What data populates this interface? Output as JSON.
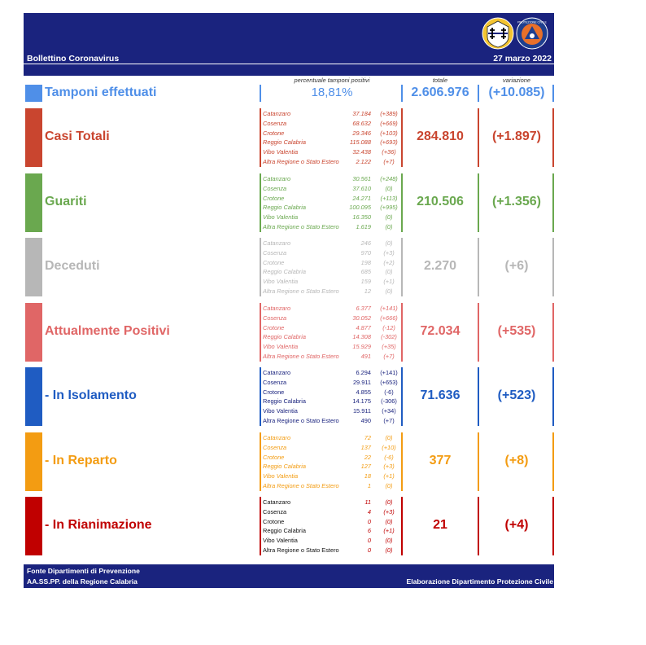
{
  "header": {
    "title": "Bollettino Coronavirus",
    "date": "27 marzo 2022",
    "logo2_text": "PROTEZIONE CIVILE"
  },
  "columns": {
    "percent_label": "percentuale tamponi positivi",
    "total_label": "totale",
    "change_label": "variazione"
  },
  "tamponi": {
    "label": "Tamponi effettuati",
    "percent": "18,81%",
    "total": "2.606.976",
    "change": "(+10.085)",
    "color": "#4f8fe8"
  },
  "sections": [
    {
      "label": "Casi Totali",
      "color": "#c9452f",
      "total": "284.810",
      "change": "(+1.897)",
      "rows": [
        {
          "name": "Catanzaro",
          "value": "37.184",
          "delta": "(+389)"
        },
        {
          "name": "Cosenza",
          "value": "68.632",
          "delta": "(+669)"
        },
        {
          "name": "Crotone",
          "value": "29.346",
          "delta": "(+103)"
        },
        {
          "name": "Reggio Calabria",
          "value": "115.088",
          "delta": "(+693)"
        },
        {
          "name": "Vibo Valentia",
          "value": "32.438",
          "delta": "(+36)"
        },
        {
          "name": "Altra Regione o Stato Estero",
          "value": "2.122",
          "delta": "(+7)"
        }
      ]
    },
    {
      "label": "Guariti",
      "color": "#6aa84f",
      "total": "210.506",
      "change": "(+1.356)",
      "rows": [
        {
          "name": "Catanzaro",
          "value": "30.561",
          "delta": "(+248)"
        },
        {
          "name": "Cosenza",
          "value": "37.610",
          "delta": "(0)"
        },
        {
          "name": "Crotone",
          "value": "24.271",
          "delta": "(+113)"
        },
        {
          "name": "Reggio Calabria",
          "value": "100.095",
          "delta": "(+995)"
        },
        {
          "name": "Vibo Valentia",
          "value": "16.350",
          "delta": "(0)"
        },
        {
          "name": "Altra Regione o Stato Estero",
          "value": "1.619",
          "delta": "(0)"
        }
      ]
    },
    {
      "label": "Deceduti",
      "color": "#b7b7b7",
      "total": "2.270",
      "change": "(+6)",
      "rows": [
        {
          "name": "Catanzaro",
          "value": "246",
          "delta": "(0)"
        },
        {
          "name": "Cosenza",
          "value": "970",
          "delta": "(+3)"
        },
        {
          "name": "Crotone",
          "value": "198",
          "delta": "(+2)"
        },
        {
          "name": "Reggio Calabria",
          "value": "685",
          "delta": "(0)"
        },
        {
          "name": "Vibo Valentia",
          "value": "159",
          "delta": "(+1)"
        },
        {
          "name": "Altra Regione o Stato Estero",
          "value": "12",
          "delta": "(0)"
        }
      ]
    },
    {
      "label": "Attualmente Positivi",
      "color": "#e06666",
      "total": "72.034",
      "change": "(+535)",
      "rows": [
        {
          "name": "Catanzaro",
          "value": "6.377",
          "delta": "(+141)"
        },
        {
          "name": "Cosenza",
          "value": "30.052",
          "delta": "(+666)"
        },
        {
          "name": "Crotone",
          "value": "4.877",
          "delta": "(-12)"
        },
        {
          "name": "Reggio Calabria",
          "value": "14.308",
          "delta": "(-302)"
        },
        {
          "name": "Vibo Valentia",
          "value": "15.929",
          "delta": "(+35)"
        },
        {
          "name": "Altra Regione o Stato Estero",
          "value": "491",
          "delta": "(+7)"
        }
      ]
    },
    {
      "label": "- In Isolamento",
      "color": "#1f5cc2",
      "total": "71.636",
      "change": "(+523)",
      "rows": [
        {
          "name": "Catanzaro",
          "value": "6.294",
          "delta": "(+141)"
        },
        {
          "name": "Cosenza",
          "value": "29.911",
          "delta": "(+653)"
        },
        {
          "name": "Crotone",
          "value": "4.855",
          "delta": "(-6)"
        },
        {
          "name": "Reggio Calabria",
          "value": "14.175",
          "delta": "(-306)"
        },
        {
          "name": "Vibo Valentia",
          "value": "15.911",
          "delta": "(+34)"
        },
        {
          "name": "Altra Regione o Stato Estero",
          "value": "490",
          "delta": "(+7)"
        }
      ]
    },
    {
      "label": "- In Reparto",
      "color": "#f39c12",
      "total": "377",
      "change": "(+8)",
      "rows": [
        {
          "name": "Catanzaro",
          "value": "72",
          "delta": "(0)"
        },
        {
          "name": "Cosenza",
          "value": "137",
          "delta": "(+10)"
        },
        {
          "name": "Crotone",
          "value": "22",
          "delta": "(-6)"
        },
        {
          "name": "Reggio Calabria",
          "value": "127",
          "delta": "(+3)"
        },
        {
          "name": "Vibo Valentia",
          "value": "18",
          "delta": "(+1)"
        },
        {
          "name": "Altra Regione o Stato Estero",
          "value": "1",
          "delta": "(0)"
        }
      ]
    },
    {
      "label": "- In Rianimazione",
      "color": "#c00000",
      "total": "21",
      "change": "(+4)",
      "rows": [
        {
          "name": "Catanzaro",
          "value": "11",
          "delta": "(0)"
        },
        {
          "name": "Cosenza",
          "value": "4",
          "delta": "(+3)"
        },
        {
          "name": "Crotone",
          "value": "0",
          "delta": "(0)"
        },
        {
          "name": "Reggio Calabria",
          "value": "6",
          "delta": "(+1)"
        },
        {
          "name": "Vibo Valentia",
          "value": "0",
          "delta": "(0)"
        },
        {
          "name": "Altra Regione o Stato Estero",
          "value": "0",
          "delta": "(0)"
        }
      ]
    }
  ],
  "footer": {
    "line1": "Fonte Dipartimenti di Prevenzione",
    "line2": "AA.SS.PP.  della Regione Calabria",
    "right": "Elaborazione Dipartimento Protezione Civile"
  }
}
